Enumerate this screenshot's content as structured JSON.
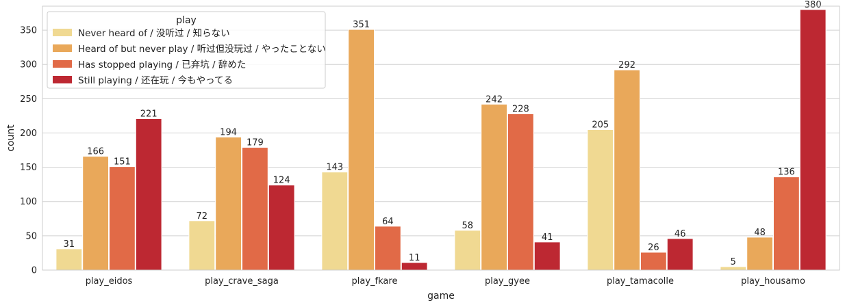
{
  "chart_data": {
    "type": "bar",
    "xlabel": "game",
    "ylabel": "count",
    "ylim": [
      0,
      385
    ],
    "yticks": [
      0,
      50,
      100,
      150,
      200,
      250,
      300,
      350
    ],
    "grid": "horizontal",
    "categories": [
      "play_eidos",
      "play_crave_saga",
      "play_fkare",
      "play_gyee",
      "play_tamacolle",
      "play_housamo"
    ],
    "legend": {
      "title": "play",
      "placement": "upper-left"
    },
    "series": [
      {
        "name": "Never heard of / 没听过 / 知らない",
        "color": "#f0d992",
        "values": [
          31,
          72,
          143,
          58,
          205,
          5
        ]
      },
      {
        "name": "Heard of but never play / 听过但没玩过 / やったことない",
        "color": "#e9a85a",
        "values": [
          166,
          194,
          351,
          242,
          292,
          48
        ]
      },
      {
        "name": "Has stopped playing / 已弃坑 / 辞めた",
        "color": "#e16a47",
        "values": [
          151,
          179,
          64,
          228,
          26,
          136
        ]
      },
      {
        "name": "Still playing / 还在玩 / 今もやってる",
        "color": "#bd2832",
        "values": [
          221,
          124,
          11,
          41,
          46,
          380
        ]
      }
    ]
  }
}
